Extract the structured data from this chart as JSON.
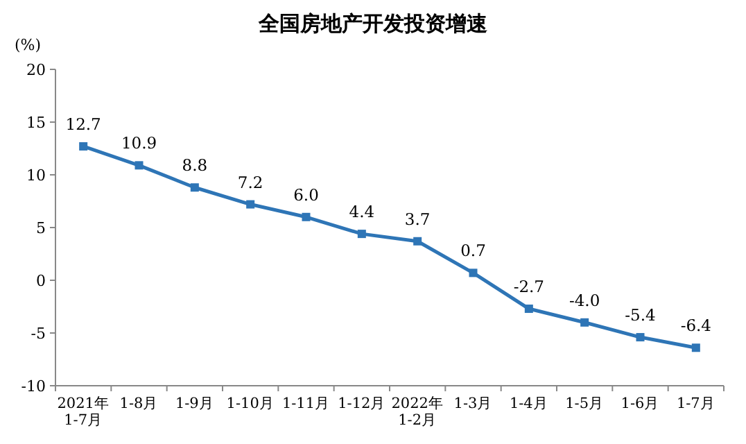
{
  "chart_data": {
    "type": "line",
    "title": "全国房地产开发投资增速",
    "ylabel": "(%)",
    "categories": [
      "2021年\n1-7月",
      "1-8月",
      "1-9月",
      "1-10月",
      "1-11月",
      "1-12月",
      "2022年\n1-2月",
      "1-3月",
      "1-4月",
      "1-5月",
      "1-6月",
      "1-7月"
    ],
    "series": [
      {
        "color": "#2e75b6",
        "values": [
          12.7,
          10.9,
          8.8,
          7.2,
          6.0,
          4.4,
          3.7,
          0.7,
          -2.7,
          -4.0,
          -5.4,
          -6.4
        ],
        "value_labels": [
          "12.7",
          "10.9",
          "8.8",
          "7.2",
          "6.0",
          "4.4",
          "3.7",
          "0.7",
          "-2.7",
          "-4.0",
          "-5.4",
          "-6.4"
        ]
      }
    ],
    "ylim": [
      -10,
      20
    ],
    "yticks": [
      -10,
      -5,
      0,
      5,
      10,
      15,
      20
    ],
    "marker": "square",
    "line_style": "solid"
  }
}
